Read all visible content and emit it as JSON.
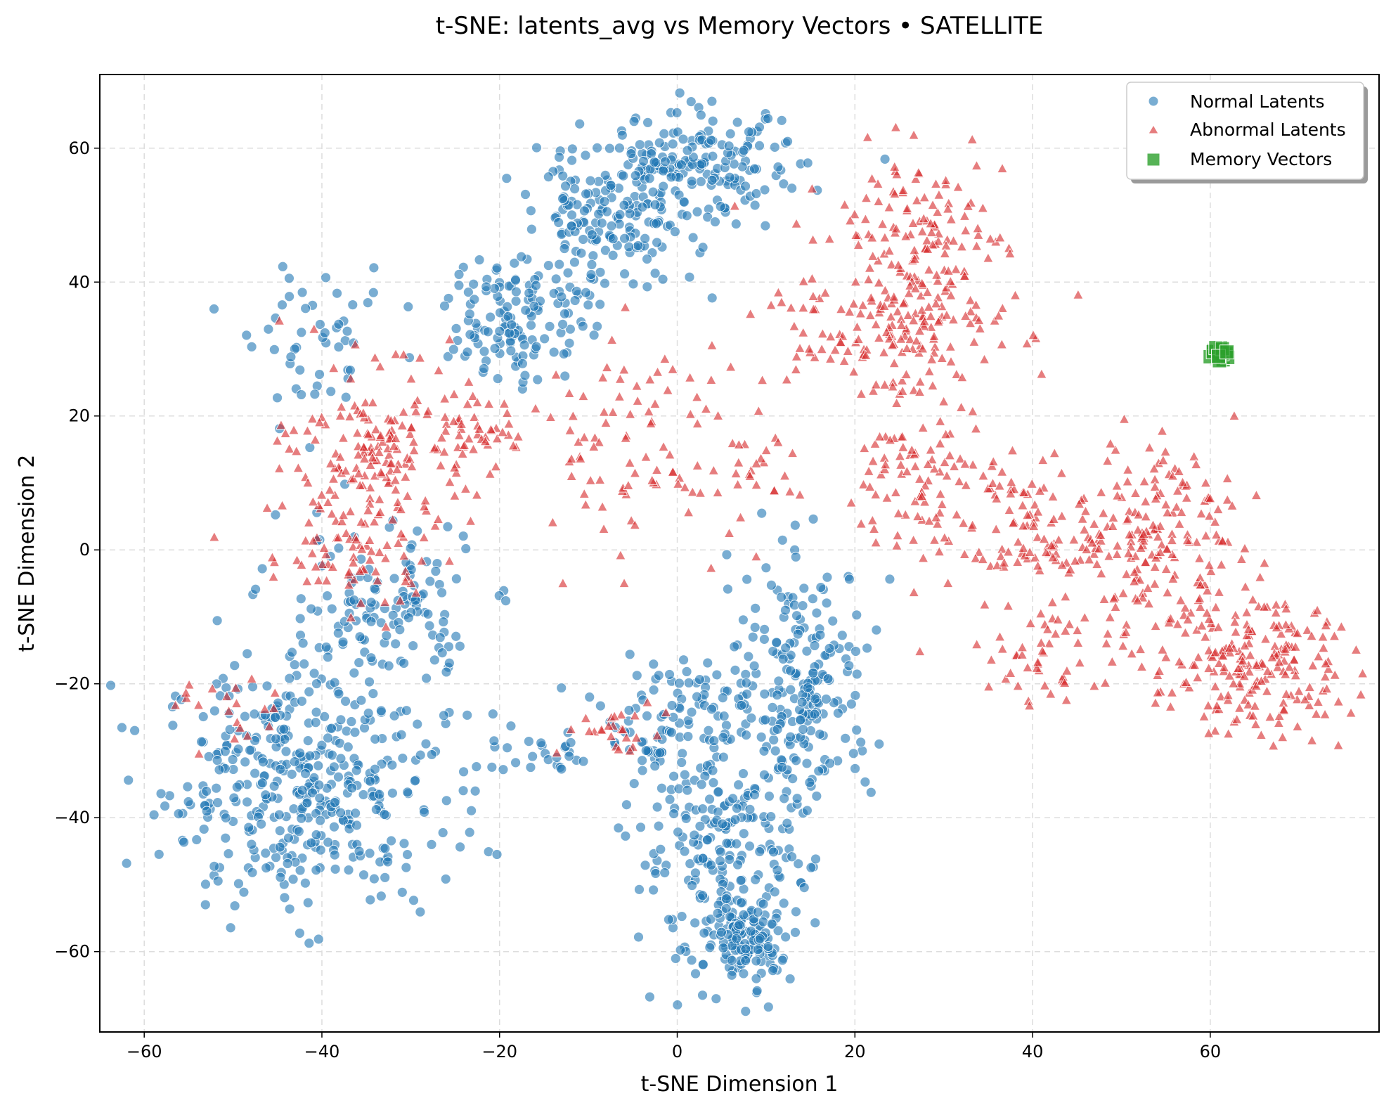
{
  "chart_data": {
    "type": "scatter",
    "title": "t-SNE: latents_avg vs Memory Vectors • SATELLITE",
    "xlabel": "t-SNE Dimension 1",
    "ylabel": "t-SNE Dimension 2",
    "xlim": [
      -65,
      79
    ],
    "ylim": [
      -72,
      71
    ],
    "xticks": [
      -60,
      -40,
      -20,
      0,
      20,
      40,
      60
    ],
    "yticks": [
      -60,
      -40,
      -20,
      0,
      20,
      40,
      60
    ],
    "xtick_labels": [
      "−60",
      "−40",
      "−20",
      "0",
      "20",
      "40",
      "60"
    ],
    "ytick_labels": [
      "−60",
      "−40",
      "−20",
      "0",
      "20",
      "40",
      "60"
    ],
    "grid": true,
    "legend_position": "top-right",
    "series": [
      {
        "name": "Normal Latents",
        "marker": "circle",
        "color": "#1f77b4",
        "clusters": [
          {
            "cx": -42,
            "cy": -35,
            "sx": 8,
            "sy": 9,
            "n": 420
          },
          {
            "cx": -35,
            "cy": -8,
            "sx": 6,
            "sy": 6,
            "n": 110
          },
          {
            "cx": 5,
            "cy": -45,
            "sx": 5,
            "sy": 9,
            "n": 230
          },
          {
            "cx": 8,
            "cy": -58,
            "sx": 2.5,
            "sy": 3,
            "n": 120
          },
          {
            "cx": 14,
            "cy": -20,
            "sx": 4,
            "sy": 9,
            "n": 220
          },
          {
            "cx": -1,
            "cy": -25,
            "sx": 4,
            "sy": 5,
            "n": 80
          },
          {
            "cx": 2,
            "cy": 57,
            "sx": 6,
            "sy": 4,
            "n": 190
          },
          {
            "cx": -8,
            "cy": 48,
            "sx": 5,
            "sy": 5,
            "n": 150
          },
          {
            "cx": -18,
            "cy": 35,
            "sx": 4,
            "sy": 5,
            "n": 130
          },
          {
            "cx": -40,
            "cy": 30,
            "sx": 4,
            "sy": 5,
            "n": 50
          },
          {
            "cx": -15,
            "cy": -31,
            "sx": 3,
            "sy": 1.5,
            "n": 25
          },
          {
            "cx": -28,
            "cy": -12,
            "sx": 3,
            "sy": 5,
            "n": 25
          }
        ]
      },
      {
        "name": "Abnormal Latents",
        "marker": "triangle",
        "color": "#d62728",
        "clusters": [
          {
            "cx": 27,
            "cy": 45,
            "sx": 5,
            "sy": 7,
            "n": 170
          },
          {
            "cx": 22,
            "cy": 32,
            "sx": 7,
            "sy": 5,
            "n": 120
          },
          {
            "cx": 28,
            "cy": 10,
            "sx": 4,
            "sy": 6,
            "n": 90
          },
          {
            "cx": -33,
            "cy": 15,
            "sx": 5,
            "sy": 6,
            "n": 170
          },
          {
            "cx": -37,
            "cy": 0,
            "sx": 5,
            "sy": 5,
            "n": 80
          },
          {
            "cx": -5,
            "cy": 17,
            "sx": 6,
            "sy": 8,
            "n": 90
          },
          {
            "cx": 65,
            "cy": -18,
            "sx": 6,
            "sy": 5,
            "n": 200
          },
          {
            "cx": 55,
            "cy": -5,
            "sx": 5,
            "sy": 6,
            "n": 90
          },
          {
            "cx": 55,
            "cy": 8,
            "sx": 4,
            "sy": 5,
            "n": 80
          },
          {
            "cx": 44,
            "cy": 0,
            "sx": 6,
            "sy": 2,
            "n": 80
          },
          {
            "cx": 40,
            "cy": 8,
            "sx": 3,
            "sy": 3,
            "n": 40
          },
          {
            "cx": 42,
            "cy": -16,
            "sx": 5,
            "sy": 4,
            "n": 50
          },
          {
            "cx": -7,
            "cy": -27,
            "sx": 3,
            "sy": 2,
            "n": 25
          },
          {
            "cx": 8,
            "cy": 12,
            "sx": 3,
            "sy": 3,
            "n": 25
          },
          {
            "cx": -22,
            "cy": 17,
            "sx": 3,
            "sy": 2,
            "n": 30
          },
          {
            "cx": -50,
            "cy": -25,
            "sx": 3,
            "sy": 3,
            "n": 20
          }
        ]
      },
      {
        "name": "Memory Vectors",
        "marker": "square",
        "color": "#2ca02c",
        "clusters": [
          {
            "cx": 61.3,
            "cy": 29.3,
            "sx": 0.6,
            "sy": 0.5,
            "n": 18
          }
        ]
      }
    ]
  },
  "colors": {
    "grid": "#d9d9d9",
    "normal": "#1f77b4",
    "abnormal": "#d62728",
    "memory": "#2ca02c"
  }
}
